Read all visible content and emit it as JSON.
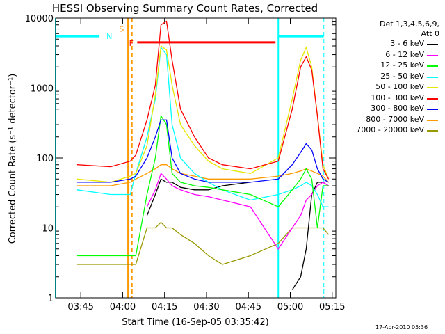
{
  "chart_data": {
    "type": "line",
    "title": "HESSI Observing Summary Count Rates, Corrected",
    "xlabel": "Start Time (16-Sep-05 03:35:42)",
    "ylabel": "Corrected Count Rate (s⁻¹ detector⁻¹)",
    "y_scale": "log",
    "ylim": [
      1,
      10000
    ],
    "xlim": [
      "03:35:42",
      "05:16"
    ],
    "x_ticks": [
      "03:45",
      "04:00",
      "04:15",
      "04:30",
      "04:45",
      "05:00",
      "05:15"
    ],
    "y_ticks": [
      "1",
      "10",
      "100",
      "1000",
      "10000"
    ],
    "legend": {
      "header_line1": "Det 1,3,4,5,6,9,",
      "header_line2": "Att 0",
      "placement": "right, outside plot"
    },
    "markers": {
      "N": "N",
      "S": "S",
      "F": "F"
    },
    "colors": {
      "3-6": "#000000",
      "6-12": "#ff00ff",
      "12-25": "#00ff00",
      "25-50": "#00ffff",
      "50-100": "#e6e600",
      "100-300": "#ff0000",
      "300-800": "#0000ff",
      "800-7000": "#ff9900",
      "7000-20000": "#999900",
      "night": "#00ffff",
      "saa": "#ff9900",
      "flare": "#ff0000"
    },
    "x_minutes_after_0335": [
      8,
      20,
      27,
      29,
      33,
      36,
      38,
      40,
      42,
      45,
      50,
      55,
      60,
      70,
      80,
      85,
      88,
      90,
      92,
      94,
      96,
      98
    ],
    "series": [
      {
        "name": "3 - 6 keV",
        "values": [
          null,
          null,
          null,
          null,
          15,
          30,
          50,
          45,
          45,
          38,
          35,
          35,
          40,
          45,
          null,
          1.3,
          2,
          5,
          30,
          45,
          45,
          40
        ]
      },
      {
        "name": "6 - 12 keV",
        "values": [
          null,
          null,
          null,
          null,
          20,
          35,
          60,
          50,
          40,
          35,
          30,
          28,
          25,
          20,
          5,
          10,
          15,
          25,
          30,
          40,
          45,
          40
        ]
      },
      {
        "name": "12 - 25 keV",
        "values": [
          4,
          4,
          4,
          4,
          30,
          100,
          400,
          300,
          60,
          45,
          40,
          38,
          35,
          30,
          20,
          35,
          50,
          70,
          50,
          10,
          40,
          40
        ]
      },
      {
        "name": "25 - 50 keV",
        "values": [
          35,
          30,
          30,
          60,
          200,
          700,
          3800,
          3000,
          300,
          100,
          60,
          45,
          35,
          25,
          30,
          35,
          40,
          45,
          40,
          30,
          20,
          20
        ]
      },
      {
        "name": "50 - 100 keV",
        "values": [
          50,
          45,
          55,
          60,
          150,
          800,
          4000,
          3500,
          1100,
          300,
          150,
          90,
          70,
          60,
          100,
          700,
          2500,
          3800,
          2000,
          400,
          80,
          50
        ]
      },
      {
        "name": "100 - 300 keV",
        "values": [
          80,
          75,
          90,
          110,
          350,
          1100,
          8000,
          9000,
          2500,
          500,
          200,
          100,
          80,
          70,
          90,
          500,
          2000,
          2800,
          1800,
          400,
          70,
          50
        ]
      },
      {
        "name": "300 - 800 keV",
        "values": [
          45,
          45,
          50,
          55,
          100,
          200,
          350,
          350,
          100,
          60,
          50,
          45,
          45,
          45,
          50,
          80,
          120,
          160,
          130,
          70,
          50,
          45
        ]
      },
      {
        "name": "800 - 7000 keV",
        "values": [
          40,
          40,
          45,
          50,
          60,
          70,
          80,
          80,
          70,
          60,
          55,
          50,
          50,
          50,
          55,
          60,
          65,
          70,
          65,
          60,
          55,
          45
        ]
      },
      {
        "name": "7000 - 20000 keV",
        "values": [
          3,
          3,
          3,
          3,
          10,
          10,
          12,
          10,
          10,
          8,
          6,
          4,
          3,
          4,
          6,
          10,
          10,
          10,
          10,
          10,
          10,
          8
        ]
      }
    ]
  },
  "footer": {
    "timestamp": "17-Apr-2010 05:36"
  }
}
